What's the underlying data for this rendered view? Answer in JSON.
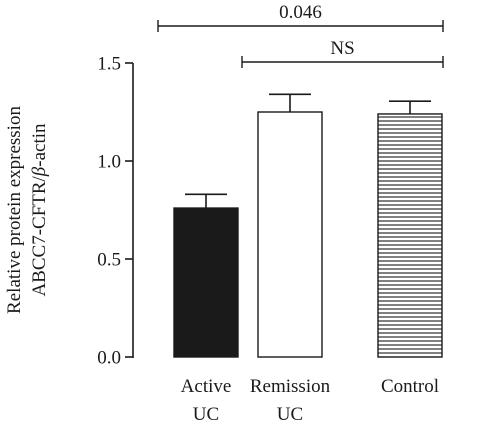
{
  "chart_data": {
    "type": "bar",
    "title": "",
    "xlabel": "",
    "ylabel_lines": [
      "Relative protein expression",
      "ABCC7-CFTR/",
      "β",
      "-actin"
    ],
    "ylim": [
      0,
      1.5
    ],
    "yticks": [
      {
        "value": 0.0,
        "label": "0.0"
      },
      {
        "value": 0.5,
        "label": "0.5"
      },
      {
        "value": 1.0,
        "label": "1.0"
      },
      {
        "value": 1.5,
        "label": "1.5"
      }
    ],
    "categories": [
      {
        "lines": [
          "Active",
          "UC"
        ]
      },
      {
        "lines": [
          "Remission",
          "UC"
        ]
      },
      {
        "lines": [
          "Control"
        ]
      }
    ],
    "values": [
      0.76,
      1.25,
      1.24
    ],
    "errors": [
      0.07,
      0.09,
      0.065
    ],
    "bar_styles": [
      "solid-black",
      "white",
      "horizontal-stripes"
    ],
    "colors": {
      "axis": "#1a1a1a",
      "solid": "#1a1a1a",
      "hollow": "#ffffff",
      "stripe": "#1a1a1a"
    },
    "annotations": [
      {
        "from": 0,
        "to": 2,
        "label": "0.046",
        "level": 1
      },
      {
        "from": 1,
        "to": 2,
        "label": "NS",
        "level": 0
      }
    ],
    "grid": false,
    "legend": "none"
  }
}
